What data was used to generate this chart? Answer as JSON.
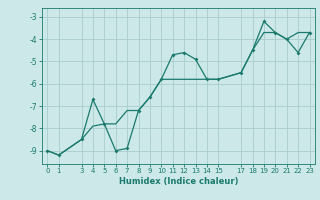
{
  "title": "",
  "xlabel": "Humidex (Indice chaleur)",
  "background_color": "#cce8e8",
  "grid_color": "#aacccc",
  "line_color": "#1a7a6e",
  "x_line1": [
    0,
    1,
    3,
    4,
    5,
    6,
    7,
    8,
    9,
    10,
    11,
    12,
    13,
    14,
    15,
    17,
    18,
    19,
    20,
    21,
    22,
    23
  ],
  "y_line1": [
    -9.0,
    -9.2,
    -8.5,
    -6.7,
    -7.8,
    -9.0,
    -8.9,
    -7.2,
    -6.6,
    -5.8,
    -4.7,
    -4.6,
    -4.9,
    -5.8,
    -5.8,
    -5.5,
    -4.5,
    -3.2,
    -3.7,
    -4.0,
    -4.6,
    -3.7
  ],
  "x_line2": [
    0,
    1,
    3,
    4,
    5,
    6,
    7,
    8,
    9,
    10,
    11,
    12,
    13,
    14,
    15,
    17,
    18,
    19,
    20,
    21,
    22,
    23
  ],
  "y_line2": [
    -9.0,
    -9.2,
    -8.5,
    -7.9,
    -7.8,
    -7.8,
    -7.2,
    -7.2,
    -6.6,
    -5.8,
    -5.8,
    -5.8,
    -5.8,
    -5.8,
    -5.8,
    -5.5,
    -4.5,
    -3.7,
    -3.7,
    -4.0,
    -3.7,
    -3.7
  ],
  "xlim": [
    -0.5,
    23.5
  ],
  "ylim": [
    -9.6,
    -2.6
  ],
  "yticks": [
    -9,
    -8,
    -7,
    -6,
    -5,
    -4,
    -3
  ],
  "xticks": [
    0,
    1,
    3,
    4,
    5,
    6,
    7,
    8,
    9,
    10,
    11,
    12,
    13,
    14,
    15,
    17,
    18,
    19,
    20,
    21,
    22,
    23
  ],
  "xtick_labels": [
    "0",
    "1",
    "3",
    "4",
    "5",
    "6",
    "7",
    "8",
    "9",
    "10",
    "11",
    "12",
    "13",
    "14",
    "15",
    "17",
    "18",
    "19",
    "20",
    "21",
    "22",
    "23"
  ]
}
